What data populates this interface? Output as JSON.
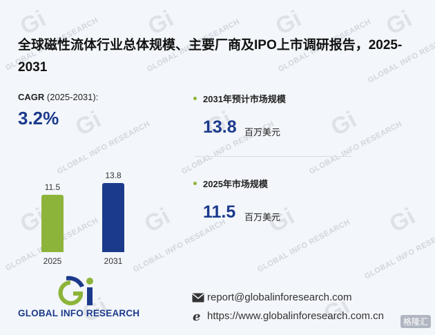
{
  "report": {
    "title": "全球磁性流体行业总体规模、主要厂商及IPO上市调研报告，2025-2031"
  },
  "cagr": {
    "label_bold": "CAGR",
    "label_rest": " (2025-2031):",
    "value": "3.2%"
  },
  "chart_data": {
    "type": "bar",
    "categories": [
      "2025",
      "2031"
    ],
    "values": [
      11.5,
      13.8
    ],
    "value_labels": [
      "11.5",
      "13.8"
    ],
    "colors": [
      "#8db43a",
      "#1b3a8c"
    ],
    "ylim": [
      0,
      13.8
    ]
  },
  "metrics": [
    {
      "label": "2031年预计市场规模",
      "value": "13.8",
      "unit": "百万美元"
    },
    {
      "label": "2025年市场规模",
      "value": "11.5",
      "unit": "百万美元"
    }
  ],
  "brand": {
    "name": "GLOBAL INFO RESEARCH",
    "watermark": "GLOBAL INFO RESEARCH",
    "watermark_logo": "Gi",
    "colors": {
      "blue": "#1b3a8c",
      "green": "#8db43a"
    }
  },
  "contact": {
    "email": "report@globalinforesearch.com",
    "website": "https://www.globalinforesearch.com.cn",
    "email_icon": "envelope-icon",
    "website_icon": "browser-e-icon"
  },
  "corner_badge": "格隆汇"
}
